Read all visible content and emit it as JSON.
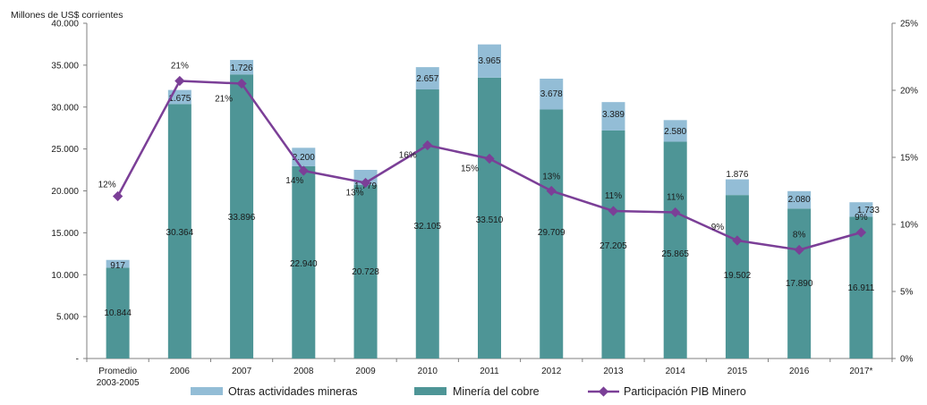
{
  "chart_data": {
    "type": "bar",
    "stacked": true,
    "ylabel": "Millones de US$ corrientes",
    "categories": [
      "Promedio\n2003-2005",
      "2006",
      "2007",
      "2008",
      "2009",
      "2010",
      "2011",
      "2012",
      "2013",
      "2014",
      "2015",
      "2016",
      "2017*"
    ],
    "ylim": [
      0,
      40000
    ],
    "yticks": [
      "-",
      "5.000",
      "10.000",
      "15.000",
      "20.000",
      "25.000",
      "30.000",
      "35.000",
      "40.000"
    ],
    "y2lim": [
      0,
      25
    ],
    "y2ticks": [
      "0%",
      "5%",
      "10%",
      "15%",
      "20%",
      "25%"
    ],
    "grid": false,
    "legend_position": "bottom",
    "series": [
      {
        "name": "Minería del cobre",
        "type": "bar",
        "color": "#4e9596",
        "values": [
          10844,
          30364,
          33896,
          22940,
          20728,
          32105,
          33510,
          29709,
          27205,
          25865,
          19502,
          17890,
          16911
        ],
        "labels": [
          "10.844",
          "30.364",
          "33.896",
          "22.940",
          "20.728",
          "32.105",
          "33.510",
          "29.709",
          "27.205",
          "25.865",
          "19.502",
          "17.890",
          "16.911"
        ]
      },
      {
        "name": "Otras actividades mineras",
        "type": "bar",
        "color": "#93bdd6",
        "values": [
          917,
          1675,
          1726,
          2200,
          1779,
          2657,
          3965,
          3678,
          3389,
          2580,
          1876,
          2080,
          1733
        ],
        "labels": [
          "917",
          "1.675",
          "1.726",
          "2.200",
          "1.779",
          "2.657",
          "3.965",
          "3.678",
          "3.389",
          "2.580",
          "1.876",
          "2.080",
          "1.733"
        ]
      },
      {
        "name": "Participación PIB Minero",
        "type": "line",
        "axis": "right",
        "color": "#7b3f97",
        "values": [
          12.1,
          20.7,
          20.5,
          14.0,
          13.1,
          15.9,
          14.9,
          12.5,
          11.0,
          10.9,
          8.8,
          8.1,
          9.4
        ],
        "labels": [
          "12%",
          "21%",
          "21%",
          "14%",
          "13%",
          "16%",
          "15%",
          "13%",
          "11%",
          "11%",
          "9%",
          "8%",
          "9%"
        ]
      }
    ],
    "legend": [
      {
        "name": "Otras actividades mineras",
        "color": "#93bdd6"
      },
      {
        "name": "Minería del cobre",
        "color": "#4e9596"
      },
      {
        "name": "Participación PIB Minero",
        "color": "#7b3f97"
      }
    ]
  }
}
